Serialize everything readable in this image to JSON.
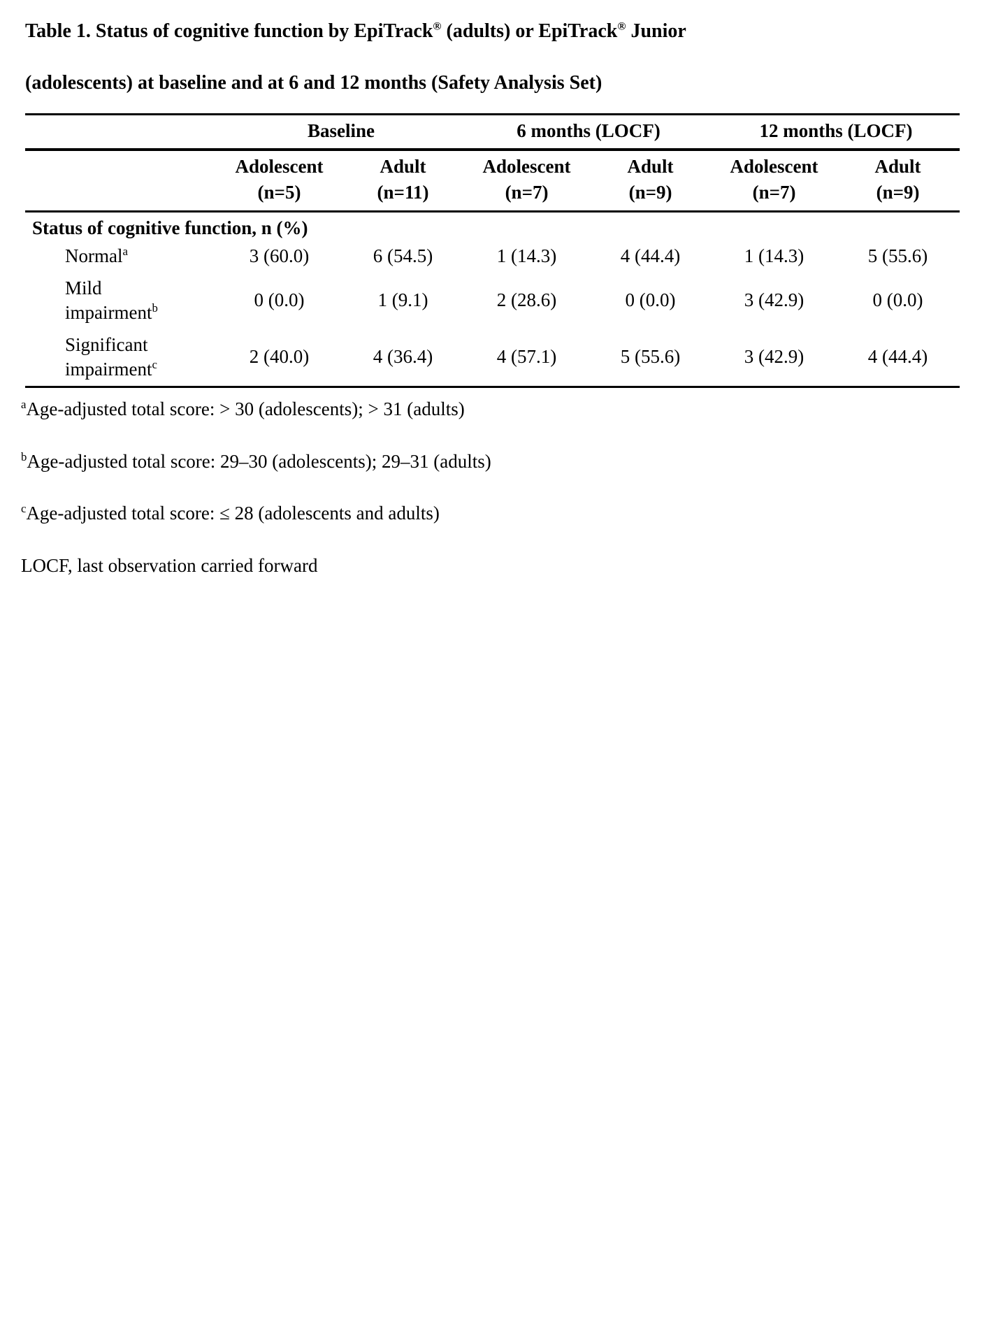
{
  "title": {
    "part1": "Table 1. Status of cognitive function by EpiTrack",
    "reg1": "®",
    "part2": " (adults) or EpiTrack",
    "reg2": "®",
    "part3": " Junior",
    "line2": "(adolescents) at baseline and at 6 and 12 months (Safety Analysis Set)"
  },
  "table": {
    "group_headers": [
      "Baseline",
      "6 months (LOCF)",
      "12 months (LOCF)"
    ],
    "col_headers": [
      {
        "line1": "Adolescent",
        "line2": "(n=5)"
      },
      {
        "line1": "Adult",
        "line2": "(n=11)"
      },
      {
        "line1": "Adolescent",
        "line2": "(n=7)"
      },
      {
        "line1": "Adult",
        "line2": "(n=9)"
      },
      {
        "line1": "Adolescent",
        "line2": "(n=7)"
      },
      {
        "line1": "Adult",
        "line2": "(n=9)"
      }
    ],
    "section_label": "Status of cognitive function, n (%)",
    "rows": [
      {
        "label1": "Normal",
        "label2": "",
        "sup": "a",
        "values": [
          "3 (60.0)",
          "6 (54.5)",
          "1 (14.3)",
          "4 (44.4)",
          "1 (14.3)",
          "5 (55.6)"
        ]
      },
      {
        "label1": "Mild",
        "label2": "impairment",
        "sup": "b",
        "values": [
          "0 (0.0)",
          "1 (9.1)",
          "2 (28.6)",
          "0 (0.0)",
          "3 (42.9)",
          "0 (0.0)"
        ]
      },
      {
        "label1": "Significant",
        "label2": "impairment",
        "sup": "c",
        "values": [
          "2 (40.0)",
          "4 (36.4)",
          "4 (57.1)",
          "5 (55.6)",
          "3 (42.9)",
          "4 (44.4)"
        ]
      }
    ]
  },
  "footnotes": [
    {
      "sup": "a",
      "text": "Age-adjusted total score: > 30 (adolescents); > 31 (adults)"
    },
    {
      "sup": "b",
      "text": "Age-adjusted total score: 29–30 (adolescents); 29–31 (adults)"
    },
    {
      "sup": "c",
      "text": "Age-adjusted total score: ≤ 28 (adolescents and adults)"
    },
    {
      "sup": "",
      "text": "LOCF, last observation carried forward"
    }
  ]
}
